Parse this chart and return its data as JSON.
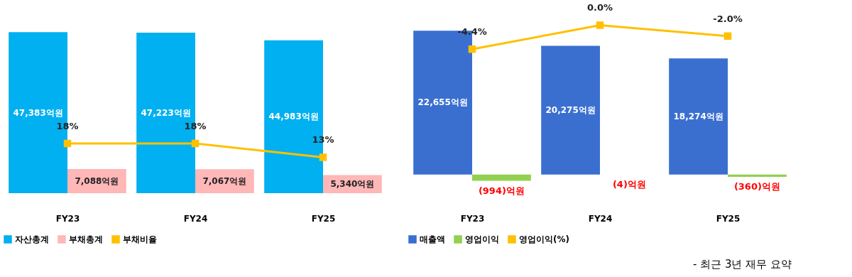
{
  "chart_data": [
    {
      "type": "bar",
      "categories": [
        "FY23",
        "FY24",
        "FY25"
      ],
      "legend": "bottom",
      "marker": "square",
      "series": [
        {
          "name": "자산총계",
          "color": "#00b0f0",
          "values": [
            47383,
            47223,
            44983
          ],
          "value_labels": [
            "47,383억원",
            "47,223억원",
            "44,983억원"
          ]
        },
        {
          "name": "부채총계",
          "color": "#ffb7b7",
          "values": [
            7088,
            7067,
            5340
          ],
          "value_labels": [
            "7,088억원",
            "7,067억원",
            "5,340억원"
          ]
        },
        {
          "name": "부채비율",
          "type": "line",
          "axis": "y2",
          "color": "#ffc000",
          "values": [
            18,
            18,
            13
          ],
          "value_labels": [
            "18%",
            "18%",
            "13%"
          ]
        }
      ]
    },
    {
      "type": "bar",
      "categories": [
        "FY23",
        "FY24",
        "FY25"
      ],
      "legend": "bottom",
      "marker": "square",
      "annotations": [
        "- 최근 3년 재무 요약"
      ],
      "series": [
        {
          "name": "매출액",
          "color": "#3a6fd0",
          "values": [
            22655,
            20275,
            18274
          ],
          "value_labels": [
            "22,655억원",
            "20,275억원",
            "18,274억원"
          ]
        },
        {
          "name": "영업이익",
          "color": "#92d050",
          "values": [
            -994,
            -4,
            -360
          ],
          "value_labels": [
            "(994)억원",
            "(4)억원",
            "(360)억원"
          ]
        },
        {
          "name": "영업이익(%)",
          "type": "line",
          "axis": "y2",
          "color": "#ffc000",
          "values": [
            -4.4,
            0.0,
            -2.0
          ],
          "value_labels": [
            "-4.4%",
            "0.0%",
            "-2.0%"
          ]
        }
      ]
    }
  ]
}
